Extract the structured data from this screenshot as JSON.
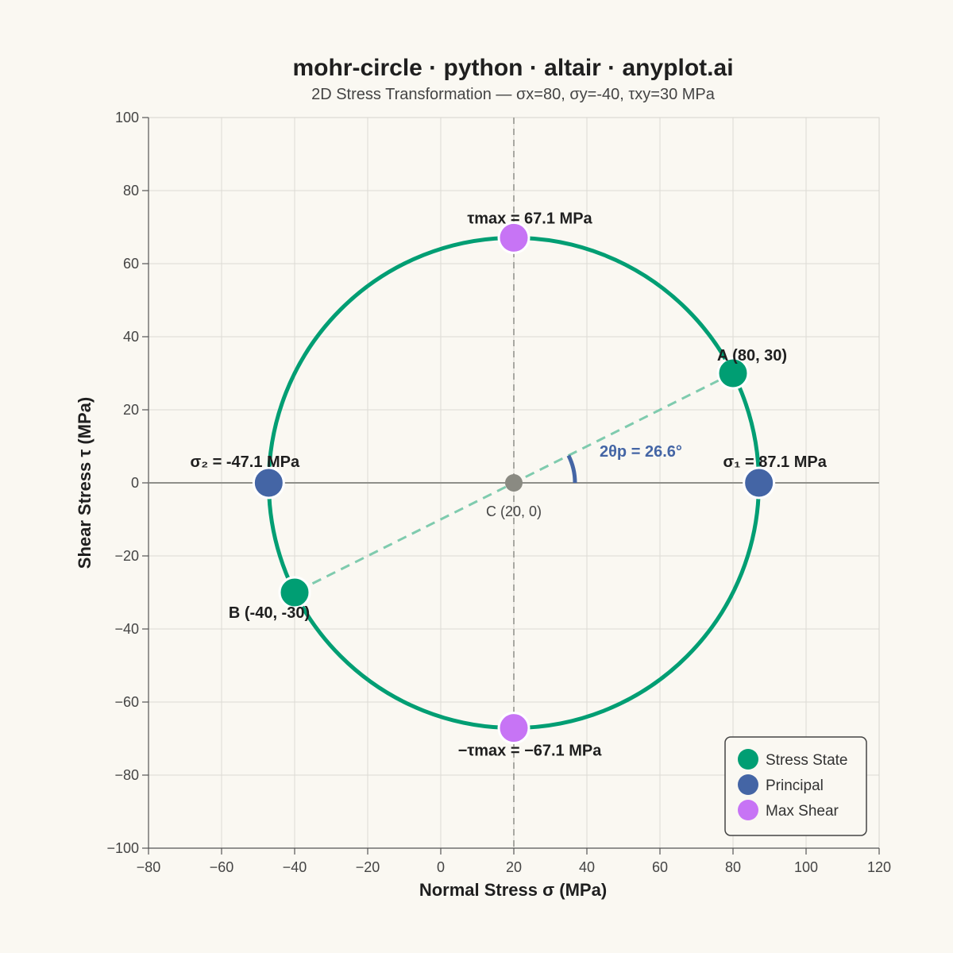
{
  "chart_data": {
    "type": "scatter",
    "title": "mohr-circle · python · altair · anyplot.ai",
    "subtitle": "2D Stress Transformation — σx=80, σy=-40, τxy=30 MPa",
    "xlabel": "Normal Stress σ (MPa)",
    "ylabel": "Shear Stress τ (MPa)",
    "xlim": [
      -80,
      120
    ],
    "ylim": [
      -100,
      100
    ],
    "x_ticks": [
      -80,
      -60,
      -40,
      -20,
      0,
      20,
      40,
      60,
      80,
      100,
      120
    ],
    "y_ticks": [
      -100,
      -80,
      -60,
      -40,
      -20,
      0,
      20,
      40,
      60,
      80,
      100
    ],
    "x_tick_labels": [
      "−80",
      "−60",
      "−40",
      "−20",
      "0",
      "20",
      "40",
      "60",
      "80",
      "100",
      "120"
    ],
    "y_tick_labels": [
      "−100",
      "−80",
      "−60",
      "−40",
      "−20",
      "0",
      "20",
      "40",
      "60",
      "80",
      "100"
    ],
    "grid": true,
    "circle": {
      "center": [
        20,
        0
      ],
      "radius": 67.08,
      "color": "#009E73"
    },
    "center_point": {
      "x": 20,
      "y": 0,
      "label": "C (20, 0)",
      "color": "#8a8a82"
    },
    "diameter": {
      "from": [
        80,
        30
      ],
      "to": [
        -40,
        -30
      ],
      "color": "#7FCBAE"
    },
    "angle": {
      "label": "2θp = 26.6°",
      "degrees": 26.57,
      "color": "#4465A5"
    },
    "points": [
      {
        "name": "A",
        "x": 80,
        "y": 30,
        "label": "A (80, 30)",
        "category": "Stress State"
      },
      {
        "name": "B",
        "x": -40,
        "y": -30,
        "label": "B (-40, -30)",
        "category": "Stress State"
      },
      {
        "name": "sigma1",
        "x": 87.1,
        "y": 0,
        "label": "σ₁ = 87.1 MPa",
        "category": "Principal"
      },
      {
        "name": "sigma2",
        "x": -47.1,
        "y": 0,
        "label": "σ₂ = -47.1 MPa",
        "category": "Principal"
      },
      {
        "name": "tau-max",
        "x": 20,
        "y": 67.1,
        "label": "τmax = 67.1 MPa",
        "category": "Max Shear"
      },
      {
        "name": "tau-min",
        "x": 20,
        "y": -67.1,
        "label": "−τmax = −67.1 MPa",
        "category": "Max Shear"
      }
    ],
    "legend": {
      "position": "bottom-right",
      "entries": [
        {
          "label": "Stress State",
          "color": "#009E73"
        },
        {
          "label": "Principal",
          "color": "#4465A5"
        },
        {
          "label": "Max Shear",
          "color": "#C774F5"
        }
      ]
    }
  }
}
